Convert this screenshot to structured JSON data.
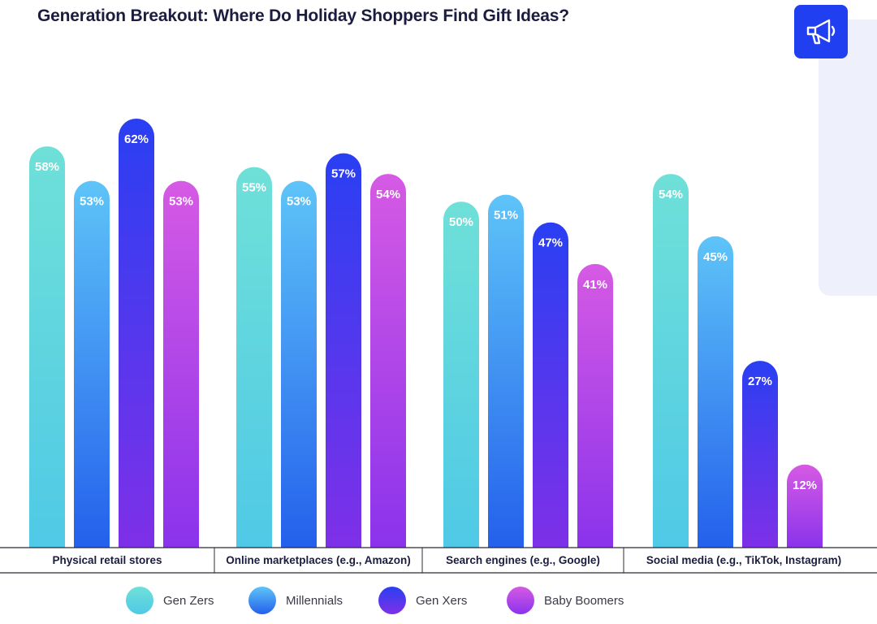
{
  "title": "Generation Breakout: Where Do Holiday Shoppers Find Gift Ideas?",
  "badge_icon": "megaphone-icon",
  "colors": {
    "gen_zers": [
      "#6fe0d8",
      "#4fc9e6"
    ],
    "millennials": [
      "#5ec4f8",
      "#2460ec"
    ],
    "gen_xers": [
      "#2a3ff2",
      "#7e30e8"
    ],
    "baby_boomers": [
      "#d65ae4",
      "#8a33ec"
    ],
    "badge": "#1f3ff0",
    "title": "#1b1c3f"
  },
  "chart_data": {
    "type": "bar",
    "categories": [
      "Physical retail stores",
      "Online marketplaces (e.g., Amazon)",
      "Search engines (e.g., Google)",
      "Social media (e.g., TikTok, Instagram)"
    ],
    "series": [
      {
        "name": "Gen Zers",
        "values": [
          58,
          55,
          50,
          54
        ]
      },
      {
        "name": "Millennials",
        "values": [
          53,
          53,
          51,
          45
        ]
      },
      {
        "name": "Gen Xers",
        "values": [
          62,
          57,
          47,
          27
        ]
      },
      {
        "name": "Baby Boomers",
        "values": [
          53,
          54,
          41,
          12
        ]
      }
    ],
    "value_suffix": "%",
    "title": "Generation Breakout: Where Do Holiday Shoppers Find Gift Ideas?",
    "xlabel": "",
    "ylabel": "",
    "ylim": [
      0,
      62
    ],
    "legend": "bottom",
    "grid": false
  }
}
